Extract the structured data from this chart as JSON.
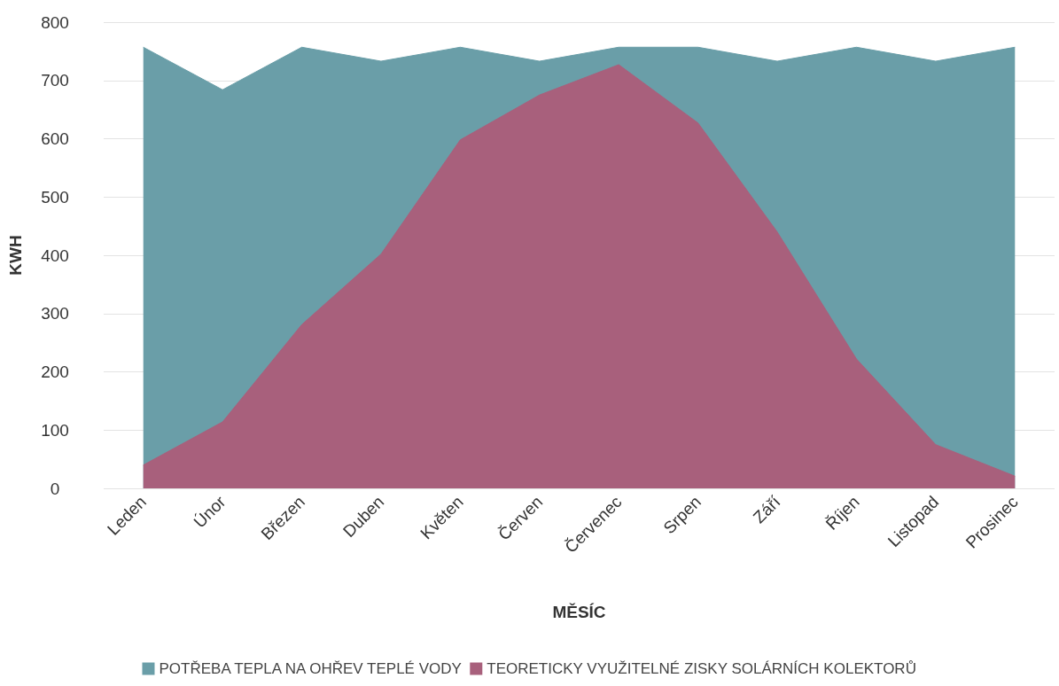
{
  "chart_data": {
    "type": "area",
    "xlabel": "MĚSÍC",
    "ylabel": "KWH",
    "categories": [
      "Leden",
      "Únor",
      "Březen",
      "Duben",
      "Květen",
      "Červen",
      "Červenec",
      "Srpen",
      "Září",
      "Říjen",
      "Listopad",
      "Prosinec"
    ],
    "series": [
      {
        "name": "POTŘEBA TEPLA NA OHŘEV TEPLÉ VODY",
        "color": "#6a9ea8",
        "values": [
          757,
          684,
          757,
          733,
          757,
          733,
          757,
          757,
          733,
          757,
          733,
          757
        ]
      },
      {
        "name": "TEORETICKY VYUŽITELNÉ ZISKY SOLÁRNÍCH KOLEKTORŮ",
        "color": "#a8607c",
        "values": [
          40,
          114,
          281,
          402,
          598,
          675,
          727,
          627,
          440,
          222,
          75,
          21
        ]
      }
    ],
    "ylim": [
      0,
      800
    ],
    "yticks": [
      0,
      100,
      200,
      300,
      400,
      500,
      600,
      700,
      800
    ],
    "grid": "y",
    "legend": "bottom",
    "marker": "none"
  }
}
